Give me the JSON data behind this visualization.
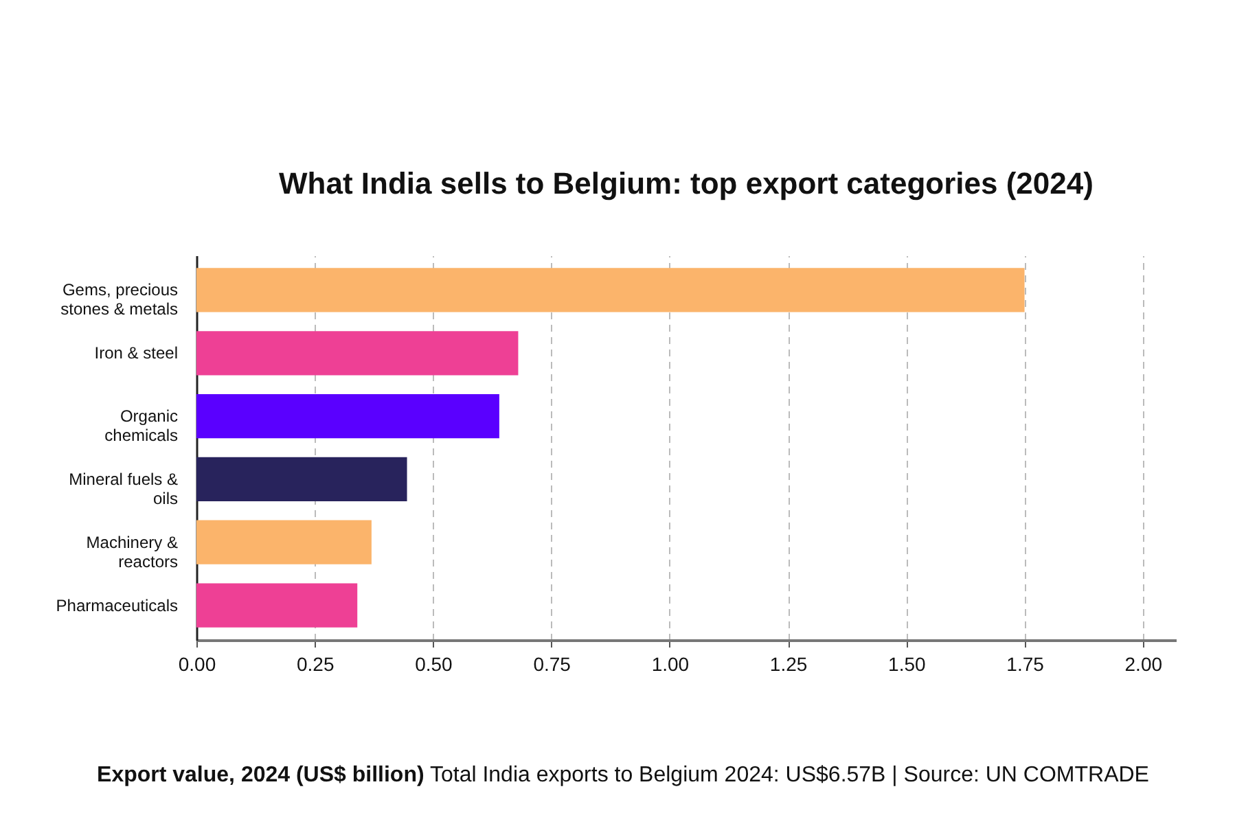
{
  "chart_data": {
    "type": "bar",
    "orientation": "horizontal",
    "title": "What India sells to Belgium: top export categories (2024)",
    "xlabel": "Export value, 2024 (US$ billion)",
    "annotations": [
      "Total India exports to Belgium 2024: US$6.57B | Source: UN COMTRADE"
    ],
    "categories": [
      "Gems, precious stones & metals",
      "Iron & steel",
      "Organic chemicals",
      "Mineral fuels & oils",
      "Machinery & reactors",
      "Pharmaceuticals"
    ],
    "values": [
      1.75,
      0.68,
      0.64,
      0.445,
      0.37,
      0.34
    ],
    "colors": [
      "#fbb46b",
      "#ee4095",
      "#5a00ff",
      "#28235c",
      "#fbb46b",
      "#ee4095"
    ],
    "xlim": [
      0,
      2.07
    ],
    "xticks": [
      {
        "value": 0,
        "label": "0.00"
      },
      {
        "value": 0.25,
        "label": "0.25"
      },
      {
        "value": 0.5,
        "label": "0.50"
      },
      {
        "value": 0.75,
        "label": "0.75"
      },
      {
        "value": 1,
        "label": "1.00"
      },
      {
        "value": 1.25,
        "label": "1.25"
      },
      {
        "value": 1.5,
        "label": "1.50"
      },
      {
        "value": 1.75,
        "label": "1.75"
      },
      {
        "value": 2,
        "label": "2.00"
      }
    ],
    "grid": "x"
  }
}
